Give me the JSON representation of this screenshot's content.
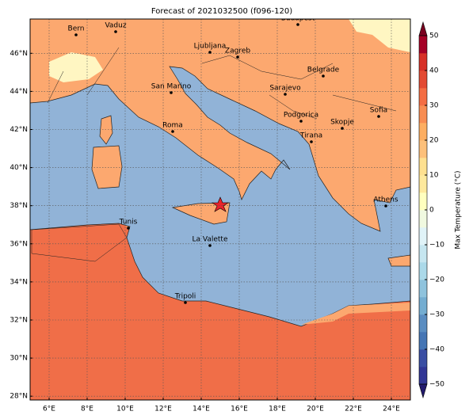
{
  "chart_data": {
    "type": "map",
    "title": "Forecast of 2021032500 (f096-120)",
    "xlim": [
      5,
      25
    ],
    "ylim": [
      27.8,
      47.8
    ],
    "xticks": [
      {
        "value": 6,
        "label": "6°E"
      },
      {
        "value": 8,
        "label": "8°E"
      },
      {
        "value": 10,
        "label": "10°E"
      },
      {
        "value": 12,
        "label": "12°E"
      },
      {
        "value": 14,
        "label": "14°E"
      },
      {
        "value": 16,
        "label": "16°E"
      },
      {
        "value": 18,
        "label": "18°E"
      },
      {
        "value": 20,
        "label": "20°E"
      },
      {
        "value": 22,
        "label": "22°E"
      },
      {
        "value": 24,
        "label": "24°E"
      }
    ],
    "yticks": [
      {
        "value": 28,
        "label": "28°N"
      },
      {
        "value": 30,
        "label": "30°N"
      },
      {
        "value": 32,
        "label": "32°N"
      },
      {
        "value": 34,
        "label": "34°N"
      },
      {
        "value": 36,
        "label": "36°N"
      },
      {
        "value": 38,
        "label": "38°N"
      },
      {
        "value": 40,
        "label": "40°N"
      },
      {
        "value": 42,
        "label": "42°N"
      },
      {
        "value": 44,
        "label": "44°N"
      },
      {
        "value": 46,
        "label": "46°N"
      }
    ],
    "grid": true,
    "cities": [
      "Bern",
      "Vaduz",
      "Budapest",
      "Ljubljana",
      "Zagreb",
      "Belgrade",
      "San Marino",
      "Sarajevo",
      "Sofia",
      "Podgorica",
      "Skopje",
      "Roma",
      "Tirana",
      "Athens",
      "Tunis",
      "La Valette",
      "Tripoli"
    ],
    "colorbar": {
      "label": "Max Temperature (°C)",
      "lim": [
        -50,
        50
      ],
      "ticks": [
        {
          "value": -50,
          "label": "−50"
        },
        {
          "value": -40,
          "label": "−40"
        },
        {
          "value": -30,
          "label": "−30"
        },
        {
          "value": -20,
          "label": "−20"
        },
        {
          "value": -10,
          "label": "−10"
        },
        0,
        10,
        20,
        30,
        40,
        50
      ],
      "colors": [
        "#313695",
        "#3a4ea3",
        "#4575b4",
        "#5a8dc1",
        "#74add1",
        "#8fc3dd",
        "#abd9e9",
        "#c6e6f0",
        "#e0f3f8",
        "#f0f9e0",
        "#ffffbf",
        "#fee99d",
        "#fee090",
        "#fdc07a",
        "#fdae61",
        "#f88d52",
        "#f46d43",
        "#e34a33",
        "#d73027",
        "#a50026"
      ]
    }
  }
}
